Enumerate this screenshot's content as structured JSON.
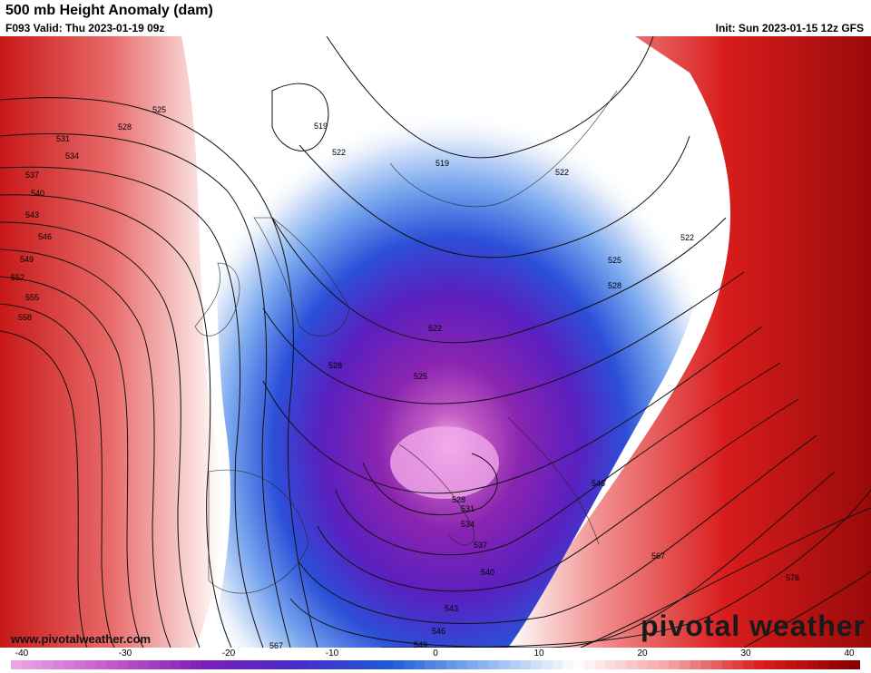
{
  "header": {
    "title": "500 mb Height Anomaly (dam)",
    "valid": "F093 Valid: Thu 2023-01-19 09z",
    "init": "Init: Sun 2023-01-15 12z GFS"
  },
  "footer": {
    "url": "www.pivotalweather.com",
    "brand": "pivotal weather"
  },
  "colorbar": {
    "ticks": [
      "-40",
      "-30",
      "-20",
      "-10",
      "0",
      "10",
      "20",
      "30",
      "40"
    ],
    "colors": {
      "strong_negative": "#e8a6e6",
      "negative_purple": "#7a1fb8",
      "negative_blue": "#1e5ad6",
      "neutral": "#ffffff",
      "positive_red": "#d81c1c",
      "strong_positive": "#8a0000"
    }
  },
  "contour_labels": {
    "west_margin": [
      "525",
      "528",
      "531",
      "534",
      "537",
      "540",
      "543",
      "546",
      "549",
      "552",
      "555",
      "558"
    ],
    "interior": [
      "519",
      "522",
      "519",
      "522",
      "522",
      "525",
      "528",
      "522",
      "528",
      "525",
      "528",
      "531",
      "534",
      "537",
      "540",
      "543",
      "546",
      "549",
      "546",
      "567",
      "567",
      "576"
    ]
  }
}
